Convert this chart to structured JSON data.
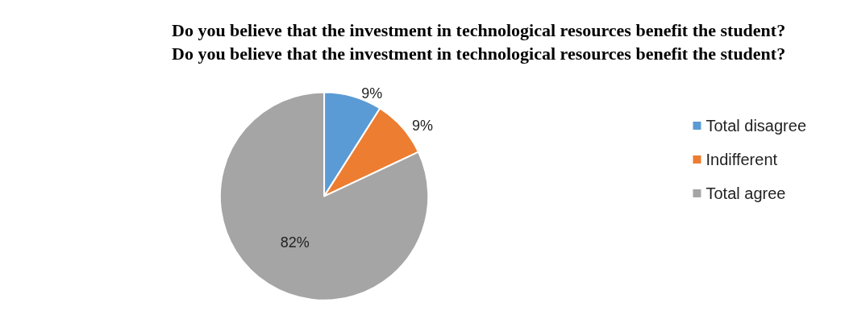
{
  "chart_data": {
    "type": "pie",
    "title": "Do you believe that the investment in technological resources benefit the student? Do you believe that the investment in technological resources benefit the student?",
    "categories": [
      "Total disagree",
      "Indifferent",
      "Total agree"
    ],
    "values": [
      9,
      9,
      82
    ],
    "colors": [
      "#5b9bd5",
      "#ed7d31",
      "#a5a5a5"
    ],
    "value_labels": [
      "9%",
      "9%",
      "82%"
    ],
    "legend": "right"
  }
}
